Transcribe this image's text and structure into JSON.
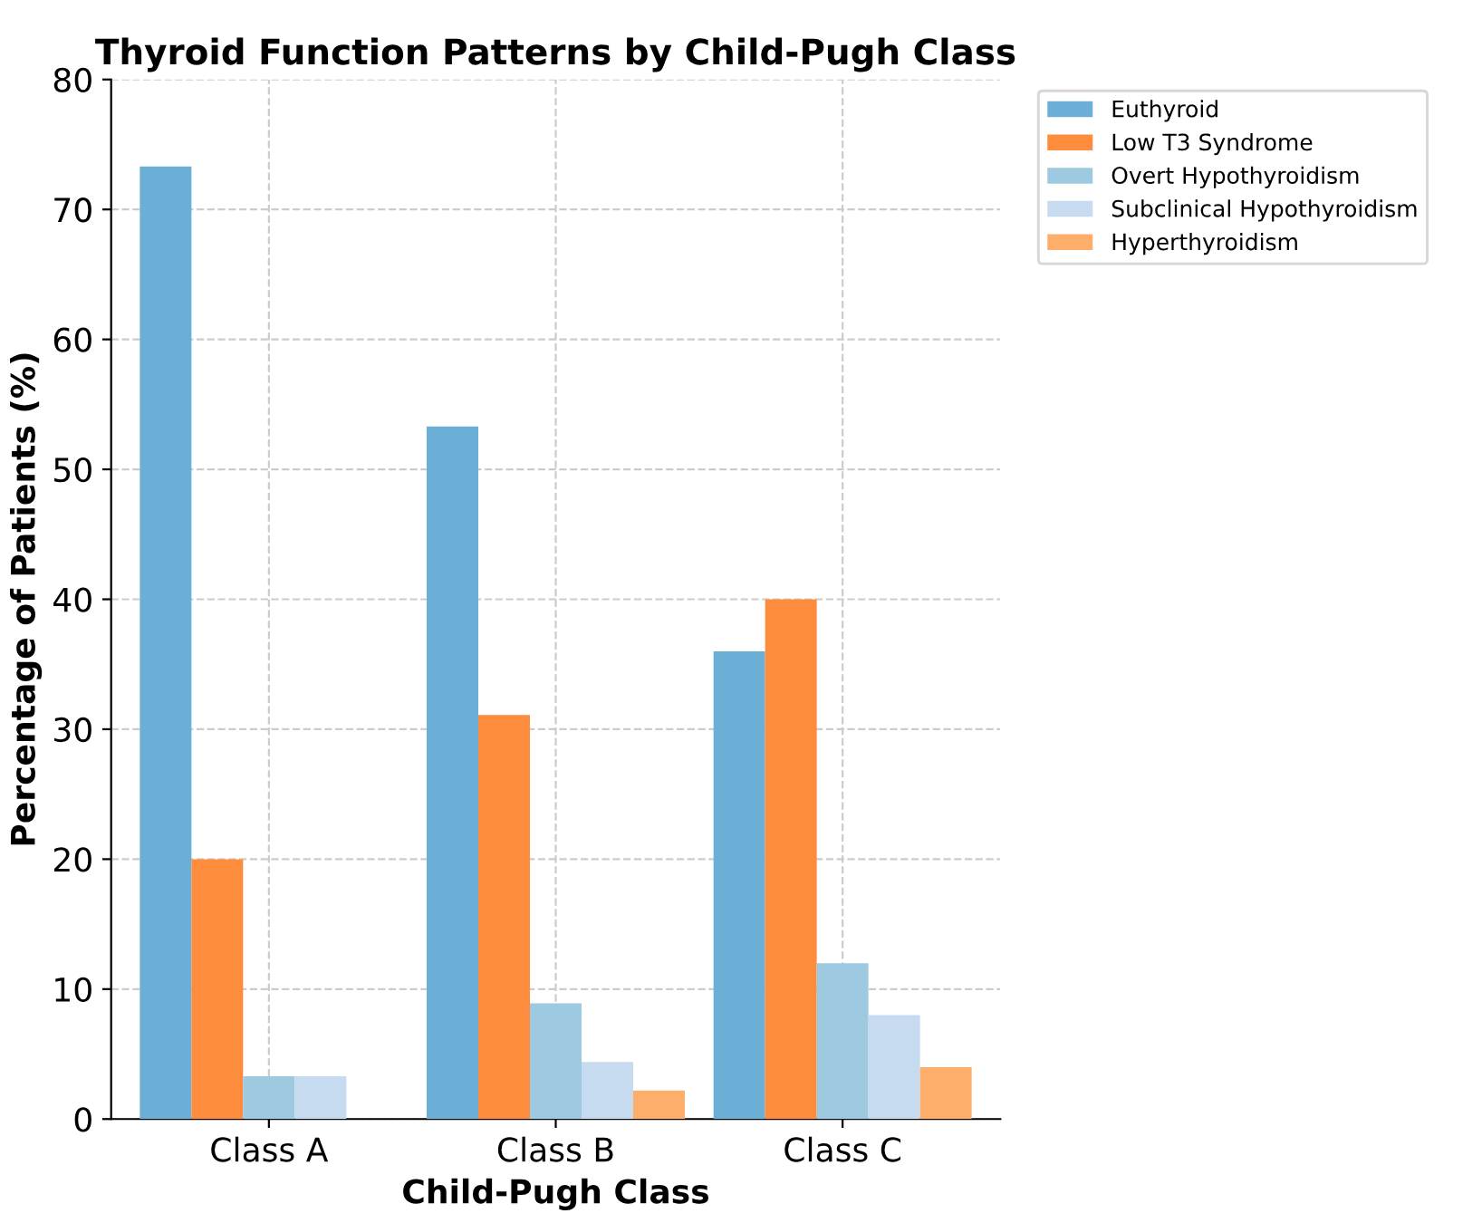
{
  "chart_data": {
    "type": "bar",
    "title": "Thyroid Function Patterns by Child-Pugh Class",
    "xlabel": "Child-Pugh Class",
    "ylabel": "Percentage of Patients (%)",
    "categories": [
      "Class A",
      "Class B",
      "Class C"
    ],
    "series": [
      {
        "name": "Euthyroid",
        "color": "#6baed6",
        "values": [
          73.3,
          53.3,
          36.0
        ]
      },
      {
        "name": "Low T3 Syndrome",
        "color": "#fd8d3c",
        "values": [
          20.0,
          31.1,
          40.0
        ]
      },
      {
        "name": "Overt Hypothyroidism",
        "color": "#9ecae1",
        "values": [
          3.3,
          8.9,
          12.0
        ]
      },
      {
        "name": "Subclinical Hypothyroidism",
        "color": "#c6dbef",
        "values": [
          3.3,
          4.4,
          8.0
        ]
      },
      {
        "name": "Hyperthyroidism",
        "color": "#fdae6b",
        "values": [
          0,
          2.2,
          4.0
        ]
      }
    ],
    "ylim": [
      0,
      80
    ],
    "yticks": [
      0,
      10,
      20,
      30,
      40,
      50,
      60,
      70,
      80
    ],
    "grid": true,
    "legend": "top right"
  }
}
